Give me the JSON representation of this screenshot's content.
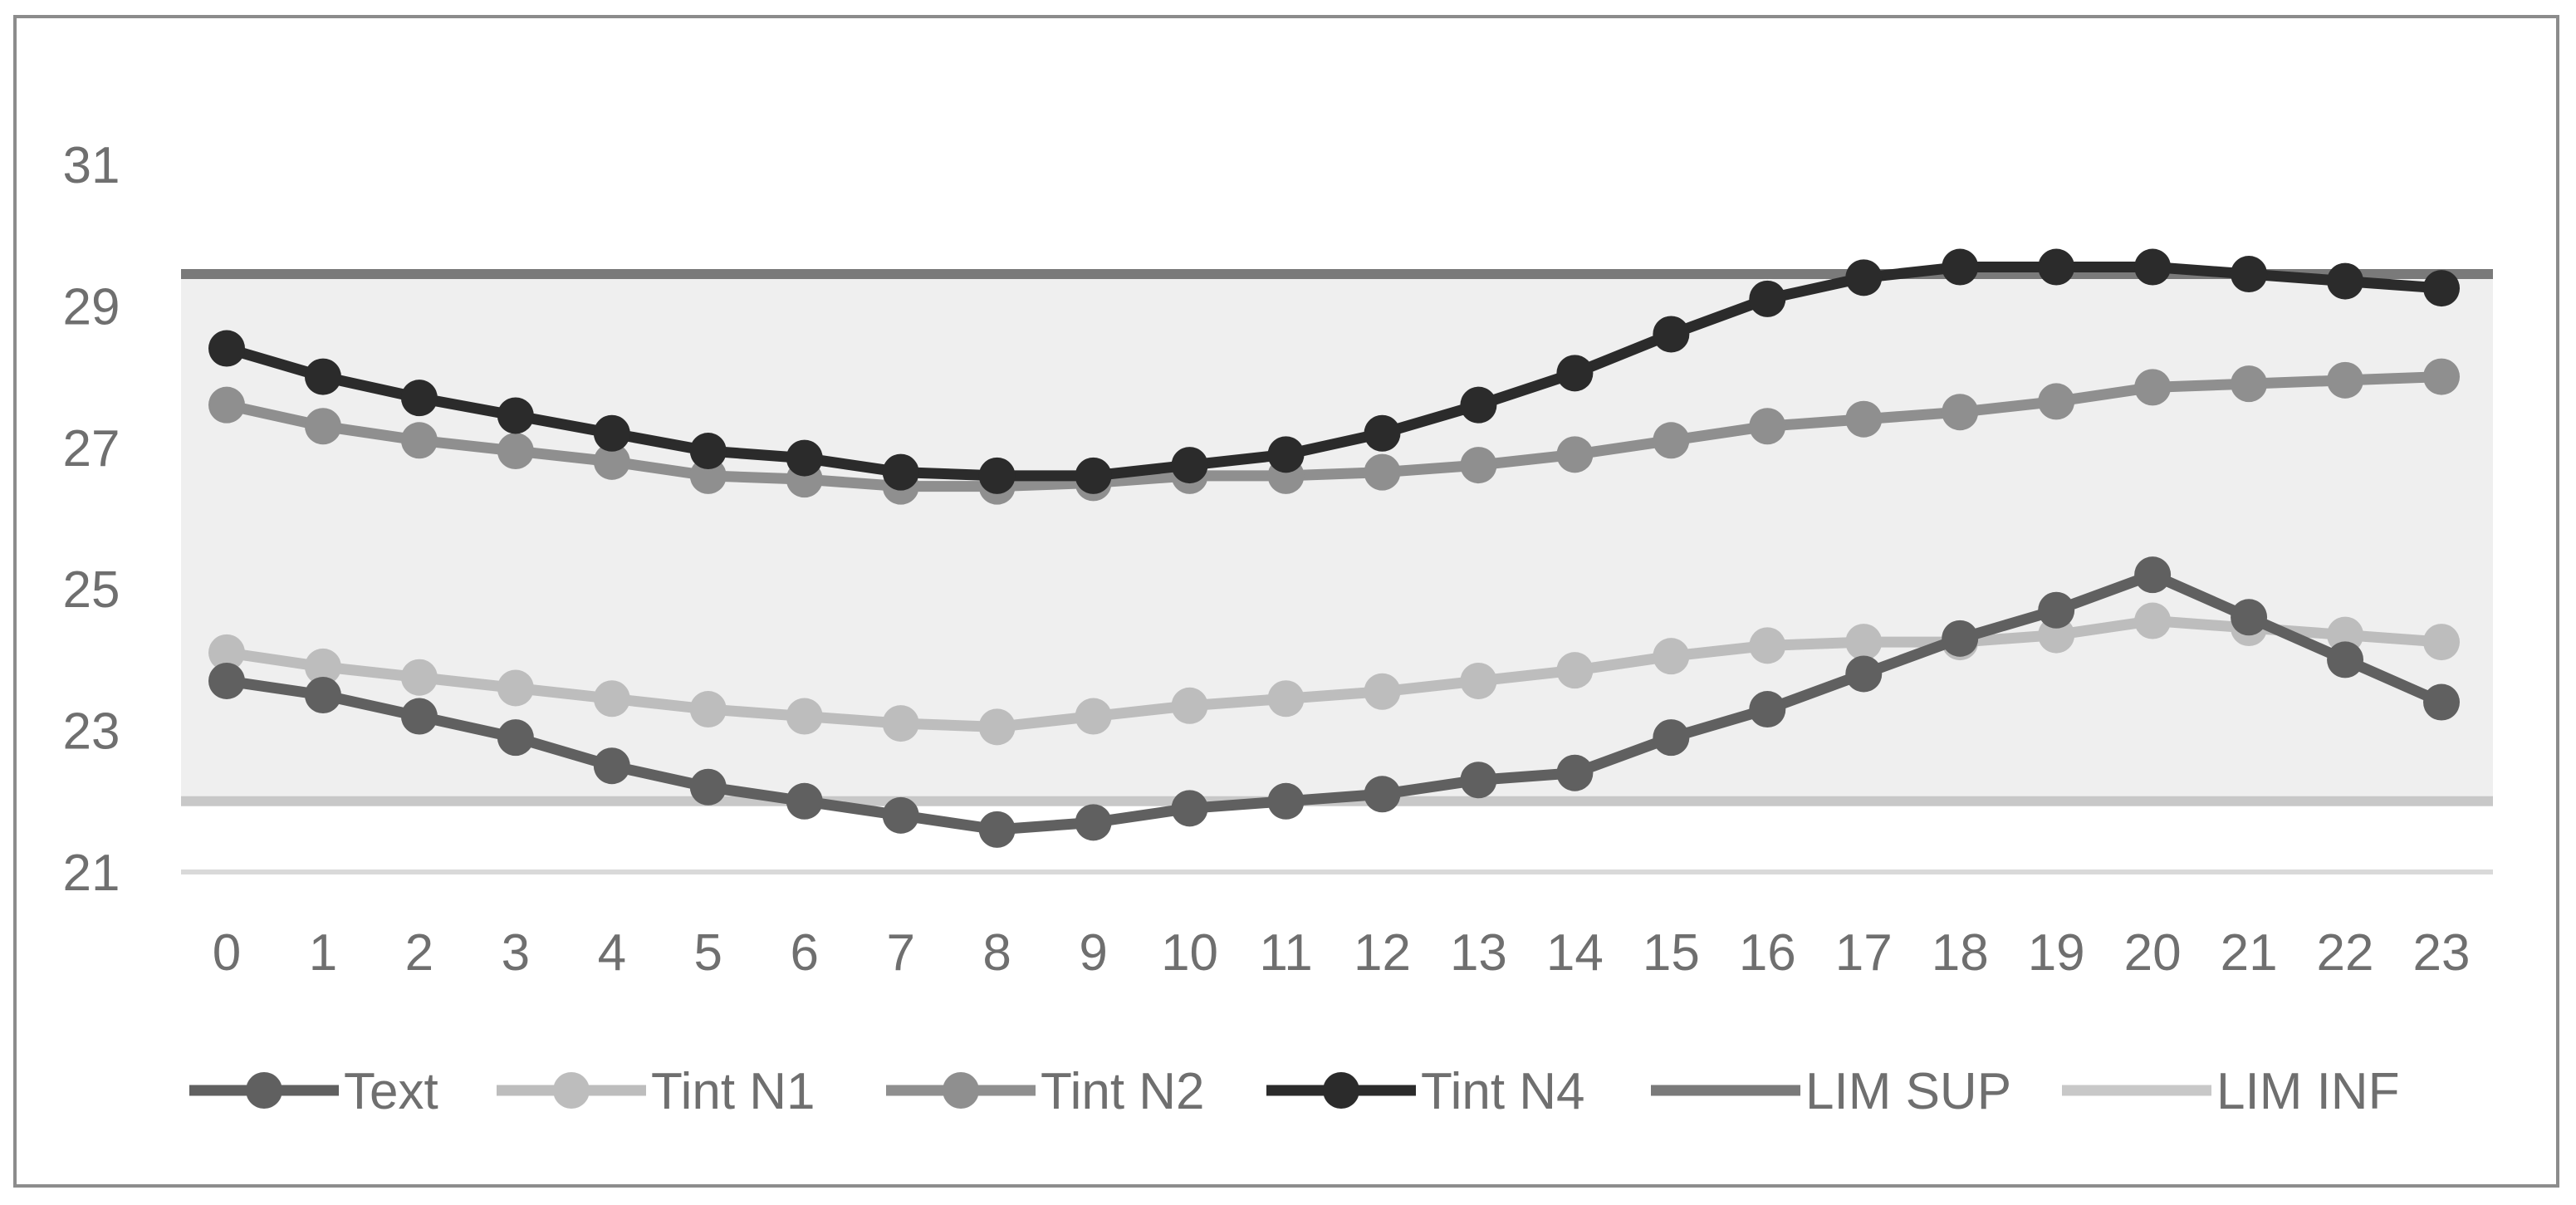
{
  "chart_data": {
    "type": "line",
    "title": "",
    "xlabel": "",
    "ylabel": "",
    "x": [
      0,
      1,
      2,
      3,
      4,
      5,
      6,
      7,
      8,
      9,
      10,
      11,
      12,
      13,
      14,
      15,
      16,
      17,
      18,
      19,
      20,
      21,
      22,
      23
    ],
    "x_tick_labels": [
      "0",
      "1",
      "2",
      "3",
      "4",
      "5",
      "6",
      "7",
      "8",
      "9",
      "10",
      "11",
      "12",
      "13",
      "14",
      "15",
      "16",
      "17",
      "18",
      "19",
      "20",
      "21",
      "22",
      "23"
    ],
    "y_ticks": [
      21,
      23,
      25,
      27,
      29,
      31
    ],
    "y_tick_labels": [
      "21",
      "23",
      "25",
      "27",
      "29",
      "31"
    ],
    "ylim": [
      21,
      32
    ],
    "grid": false,
    "legend_position": "bottom",
    "band": {
      "from": 22,
      "to": 29.45,
      "color": "#efefef"
    },
    "series": [
      {
        "name": "Text",
        "color": "#606060",
        "marker": true,
        "values": [
          23.7,
          23.5,
          23.2,
          22.9,
          22.5,
          22.2,
          22.0,
          21.8,
          21.6,
          21.7,
          21.9,
          22.0,
          22.1,
          22.3,
          22.4,
          22.9,
          23.3,
          23.8,
          24.3,
          24.7,
          25.2,
          24.6,
          24.0,
          23.4
        ]
      },
      {
        "name": "Tint N1",
        "color": "#bdbdbd",
        "marker": true,
        "values": [
          24.1,
          23.9,
          23.75,
          23.6,
          23.45,
          23.3,
          23.2,
          23.1,
          23.05,
          23.2,
          23.35,
          23.45,
          23.55,
          23.7,
          23.85,
          24.05,
          24.2,
          24.25,
          24.25,
          24.35,
          24.55,
          24.45,
          24.35,
          24.25
        ]
      },
      {
        "name": "Tint N2",
        "color": "#8f8f8f",
        "marker": true,
        "values": [
          27.6,
          27.3,
          27.1,
          26.95,
          26.8,
          26.6,
          26.55,
          26.45,
          26.45,
          26.5,
          26.6,
          26.6,
          26.65,
          26.75,
          26.9,
          27.1,
          27.3,
          27.4,
          27.5,
          27.65,
          27.85,
          27.9,
          27.95,
          28.0
        ]
      },
      {
        "name": "Tint N4",
        "color": "#2b2b2b",
        "marker": true,
        "values": [
          28.4,
          28.0,
          27.7,
          27.45,
          27.2,
          26.95,
          26.85,
          26.65,
          26.6,
          26.6,
          26.75,
          26.9,
          27.2,
          27.6,
          28.05,
          28.6,
          29.1,
          29.4,
          29.55,
          29.55,
          29.55,
          29.45,
          29.35,
          29.25
        ]
      },
      {
        "name": "LIM SUP",
        "color": "#7a7a7a",
        "marker": false,
        "values": [
          29.45,
          29.45,
          29.45,
          29.45,
          29.45,
          29.45,
          29.45,
          29.45,
          29.45,
          29.45,
          29.45,
          29.45,
          29.45,
          29.45,
          29.45,
          29.45,
          29.45,
          29.45,
          29.45,
          29.45,
          29.45,
          29.45,
          29.45,
          29.45
        ]
      },
      {
        "name": "LIM INF",
        "color": "#c8c8c8",
        "marker": false,
        "values": [
          22.0,
          22.0,
          22.0,
          22.0,
          22.0,
          22.0,
          22.0,
          22.0,
          22.0,
          22.0,
          22.0,
          22.0,
          22.0,
          22.0,
          22.0,
          22.0,
          22.0,
          22.0,
          22.0,
          22.0,
          22.0,
          22.0,
          22.0,
          22.0
        ]
      }
    ]
  }
}
